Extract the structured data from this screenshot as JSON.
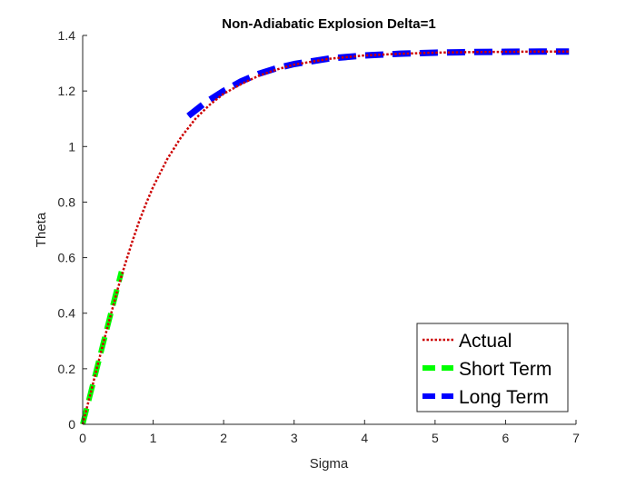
{
  "chart_data": {
    "type": "line",
    "title": "Non-Adiabatic Explosion Delta=1",
    "xlabel": "Sigma",
    "ylabel": "Theta",
    "xlim": [
      0,
      7
    ],
    "ylim": [
      0,
      1.4
    ],
    "xticks": [
      0,
      1,
      2,
      3,
      4,
      5,
      6,
      7
    ],
    "xtick_labels": [
      "0",
      "1",
      "2",
      "3",
      "4",
      "5",
      "6",
      "7"
    ],
    "yticks": [
      0,
      0.2,
      0.4,
      0.6,
      0.8,
      1.0,
      1.2,
      1.4
    ],
    "ytick_labels": [
      "0",
      "0.2",
      "0.4",
      "0.6",
      "0.8",
      "1",
      "1.2",
      "1.4"
    ],
    "grid": false,
    "legend_position": "bottom-right",
    "series": [
      {
        "name": "Actual",
        "color": "#cc0000",
        "style": "dotted",
        "x": [
          0,
          0.1,
          0.2,
          0.3,
          0.4,
          0.5,
          0.6,
          0.7,
          0.8,
          0.9,
          1.0,
          1.2,
          1.4,
          1.6,
          1.8,
          2.0,
          2.25,
          2.5,
          2.75,
          3.0,
          3.5,
          4.0,
          4.5,
          5.0,
          5.5,
          6.0,
          6.5,
          6.9
        ],
        "y": [
          0,
          0.1,
          0.2,
          0.3,
          0.395,
          0.49,
          0.575,
          0.655,
          0.73,
          0.795,
          0.855,
          0.955,
          1.035,
          1.1,
          1.15,
          1.19,
          1.225,
          1.255,
          1.277,
          1.295,
          1.316,
          1.328,
          1.334,
          1.338,
          1.34,
          1.341,
          1.342,
          1.342
        ]
      },
      {
        "name": "Short Term",
        "color": "#00ff00",
        "style": "dashed",
        "x": [
          0,
          0.1,
          0.2,
          0.3,
          0.4,
          0.5,
          0.55
        ],
        "y": [
          0,
          0.1,
          0.2,
          0.3,
          0.4,
          0.5,
          0.55
        ]
      },
      {
        "name": "Long Term",
        "color": "#0000ff",
        "style": "dashed",
        "x": [
          1.5,
          1.75,
          2.0,
          2.25,
          2.5,
          2.75,
          3.0,
          3.5,
          4.0,
          4.5,
          5.0,
          5.5,
          6.0,
          6.5,
          6.9
        ],
        "y": [
          1.11,
          1.16,
          1.2,
          1.235,
          1.262,
          1.282,
          1.297,
          1.317,
          1.328,
          1.334,
          1.338,
          1.34,
          1.341,
          1.342,
          1.342
        ]
      }
    ]
  }
}
